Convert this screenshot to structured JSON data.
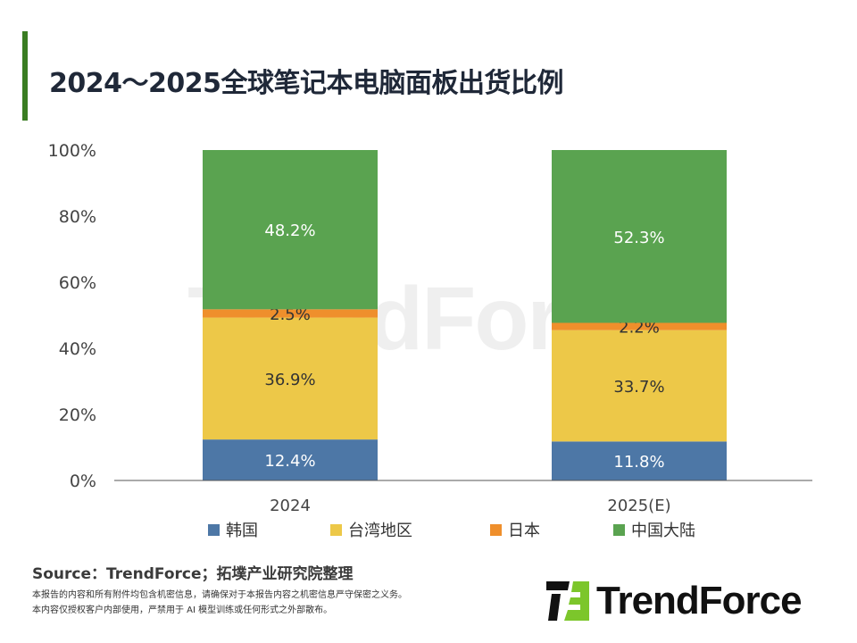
{
  "title": "2024～2025全球笔记本电脑面板出货比例",
  "chart_data": {
    "type": "bar",
    "stacked": true,
    "title": "2024～2025全球笔记本电脑面板出货比例",
    "categories": [
      "2024",
      "2025(E)"
    ],
    "series": [
      {
        "name": "韩国",
        "color": "#4d77a6",
        "values": [
          12.4,
          11.8
        ],
        "labels": [
          "12.4%",
          "11.8%"
        ],
        "label_color": "#ffffff"
      },
      {
        "name": "台湾地区",
        "color": "#edc848",
        "values": [
          36.9,
          33.7
        ],
        "labels": [
          "36.9%",
          "33.7%"
        ],
        "label_color": "#333333"
      },
      {
        "name": "日本",
        "color": "#ef8f2c",
        "values": [
          2.5,
          2.2
        ],
        "labels": [
          "2.5%",
          "2.2%"
        ],
        "label_color": "#333333"
      },
      {
        "name": "中国大陆",
        "color": "#5aa350",
        "values": [
          48.2,
          52.3
        ],
        "labels": [
          "48.2%",
          "52.3%"
        ],
        "label_color": "#ffffff"
      }
    ],
    "ylim": [
      0,
      100
    ],
    "yticks": [
      "0%",
      "20%",
      "40%",
      "60%",
      "80%",
      "100%"
    ],
    "grid": false,
    "legend": "bottom"
  },
  "source": "Source：TrendForce；拓墣产业研究院整理",
  "notes": [
    "本报告的内容和所有附件均包含机密信息，请确保对于本报告内容之机密信息严守保密之义务。",
    "本内容仅授权客户内部使用，严禁用于 AI 模型训练或任何形式之外部散布。"
  ],
  "logo_text": "TrendForce",
  "watermark": "TrendForce"
}
